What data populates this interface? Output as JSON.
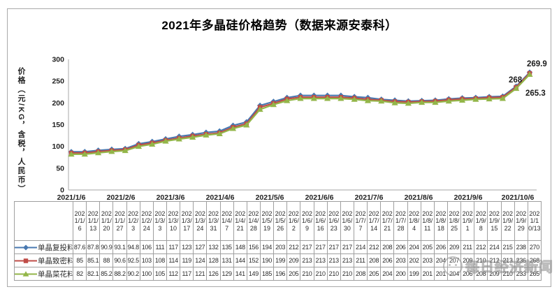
{
  "figure": {
    "title": "2021年多晶硅价格趋势（数据来源安泰科）"
  },
  "chart_data": {
    "type": "line",
    "title": "2021年多晶硅价格趋势（数据来源安泰科）",
    "xlabel": "",
    "ylabel": "价格（元/KG，含税，人民币）",
    "ylim": [
      0,
      300
    ],
    "yticks": [
      0,
      50,
      100,
      150,
      200,
      250,
      300
    ],
    "grid": false,
    "legend_position": "table-rows-left",
    "x_tick_labels": [
      "2021/1/6",
      "2021/2/6",
      "2021/3/6",
      "2021/4/6",
      "2021/5/6",
      "2021/6/6",
      "2021/7/6",
      "2021/8/6",
      "2021/9/6",
      "2021/10/6"
    ],
    "categories": [
      "2021/1/6",
      "2021/1/13",
      "2021/1/20",
      "2021/1/27",
      "2021/2/3",
      "2021/2/24",
      "2021/3/3",
      "2021/3/10",
      "2021/3/17",
      "2021/3/24",
      "2021/3/31",
      "2021/4/7",
      "2021/4/21",
      "2021/4/28",
      "2021/5/19",
      "2021/5/26",
      "2021/6/2",
      "2021/6/9",
      "2021/6/16",
      "2021/6/23",
      "2021/6/30",
      "2021/7/7",
      "2021/7/14",
      "2021/7/21",
      "2021/7/28",
      "2021/8/4",
      "2021/8/11",
      "2021/8/18",
      "2021/8/25",
      "2021/9/1",
      "2021/9/8",
      "2021/9/15",
      "2021/9/22",
      "2021/9/29",
      "2021/10/13"
    ],
    "series": [
      {
        "name": "单晶复投料",
        "marker": "diamond",
        "color": "#4878b0",
        "end_label": "269.9",
        "values": [
          87.6,
          87.8,
          90.9,
          93.1,
          94.8,
          106,
          111,
          117,
          123,
          127,
          132,
          135,
          148,
          156,
          194,
          203,
          212,
          217,
          217,
          217,
          217,
          214,
          212,
          208,
          206,
          204,
          205,
          206,
          209,
          211,
          212,
          214,
          215,
          238,
          269.9
        ]
      },
      {
        "name": "单晶致密料",
        "marker": "square",
        "color": "#bf4c47",
        "end_label": "268",
        "values": [
          85,
          85.1,
          88,
          90.6,
          92.5,
          103,
          108,
          114,
          119,
          124,
          128,
          131,
          144,
          152,
          190,
          199,
          209,
          213,
          213,
          213,
          213,
          211,
          208,
          206,
          203,
          202,
          203,
          204,
          207,
          209,
          210,
          212,
          213,
          236,
          268
        ]
      },
      {
        "name": "单晶菜花料",
        "marker": "triangle",
        "color": "#93b649",
        "end_label": "265.3",
        "values": [
          82,
          82.1,
          85.2,
          88.2,
          90.2,
          100,
          105,
          112,
          117,
          121,
          126,
          129,
          141,
          149,
          185,
          196,
          205,
          210,
          210,
          210,
          210,
          208,
          205,
          204,
          200,
          199,
          201,
          201,
          204,
          206,
          208,
          209,
          210,
          233,
          265.3
        ]
      }
    ]
  },
  "table": {
    "corner_label": "",
    "columns": [
      "2021/1/6",
      "2021/1/13",
      "2021/1/20",
      "2021/1/27",
      "2021/2/3",
      "2021/2/24",
      "2021/3/3",
      "2021/3/10",
      "2021/3/17",
      "2021/3/24",
      "2021/3/31",
      "2021/4/7",
      "2021/4/21",
      "2021/4/28",
      "2021/5/19",
      "2021/5/26",
      "2021/6/2",
      "2021/6/9",
      "2021/6/16",
      "2021/6/23",
      "2021/6/30",
      "2021/7/7",
      "2021/7/14",
      "2021/7/21",
      "2021/7/28",
      "2021/8/4",
      "2021/8/11",
      "2021/8/18",
      "2021/8/25",
      "2021/9/1",
      "2021/9/8",
      "2021/9/15",
      "2021/9/22",
      "2021/9/29",
      "2021/10/13"
    ],
    "rows": [
      {
        "label": "单晶复投料",
        "values": [
          "87.6",
          "87.8",
          "90.9",
          "93.1",
          "94.8",
          "106",
          "111",
          "117",
          "123",
          "127",
          "132",
          "135",
          "148",
          "156",
          "194",
          "203",
          "212",
          "217",
          "217",
          "217",
          "217",
          "214",
          "212",
          "208",
          "206",
          "204",
          "205",
          "206",
          "209",
          "211",
          "212",
          "214",
          "215",
          "238",
          "270"
        ]
      },
      {
        "label": "单晶致密料",
        "values": [
          "85",
          "85.1",
          "88",
          "90.6",
          "92.5",
          "103",
          "108",
          "114",
          "119",
          "124",
          "128",
          "131",
          "144",
          "152",
          "190",
          "199",
          "209",
          "213",
          "213",
          "213",
          "213",
          "211",
          "208",
          "206",
          "203",
          "202",
          "203",
          "204",
          "207",
          "209",
          "210",
          "212",
          "213",
          "236",
          "268"
        ]
      },
      {
        "label": "单晶菜花料",
        "values": [
          "82",
          "82.1",
          "85.2",
          "88.2",
          "90.2",
          "100",
          "105",
          "112",
          "117",
          "121",
          "126",
          "129",
          "141",
          "149",
          "185",
          "196",
          "205",
          "210",
          "210",
          "210",
          "210",
          "208",
          "205",
          "204",
          "200",
          "199",
          "201",
          "201",
          "204",
          "206",
          "208",
          "209",
          "210",
          "233",
          "265"
        ]
      }
    ]
  },
  "watermark": {
    "text": "每日经济新闻"
  }
}
